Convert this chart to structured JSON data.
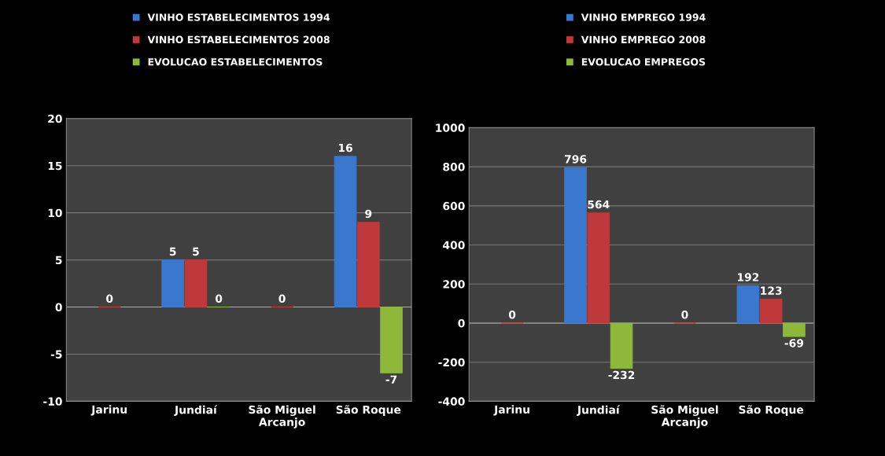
{
  "chart_data": [
    {
      "type": "bar",
      "categories": [
        "Jarinu",
        "Jundiaí",
        "São Miguel\nArcanjo",
        "São Roque"
      ],
      "series": [
        {
          "name": "VINHO ESTABELECIMENTOS 1994",
          "color": "#3a78d0",
          "values": [
            null,
            5,
            null,
            16
          ],
          "value_labels": [
            null,
            "5",
            null,
            "16"
          ]
        },
        {
          "name": "VINHO ESTABELECIMENTOS 2008",
          "color": "#c0393a",
          "values": [
            0,
            5,
            0,
            9
          ],
          "value_labels": [
            "0",
            "5",
            "0",
            "9"
          ]
        },
        {
          "name": "EVOLUCAO ESTABELECIMENTOS",
          "color": "#8db83a",
          "values": [
            null,
            0,
            null,
            -7
          ],
          "value_labels": [
            null,
            "0",
            null,
            "-7"
          ]
        }
      ],
      "ylim": [
        -10,
        20
      ],
      "yticks": [
        -10,
        -5,
        0,
        5,
        10,
        15,
        20
      ],
      "grid": "y",
      "legend": "top"
    },
    {
      "type": "bar",
      "categories": [
        "Jarinu",
        "Jundiaí",
        "São Miguel\nArcanjo",
        "São Roque"
      ],
      "series": [
        {
          "name": "VINHO EMPREGO 1994",
          "color": "#3a78d0",
          "values": [
            null,
            796,
            null,
            192
          ],
          "value_labels": [
            null,
            "796",
            null,
            "192"
          ]
        },
        {
          "name": "VINHO EMPREGO 2008",
          "color": "#c0393a",
          "values": [
            0,
            564,
            0,
            123
          ],
          "value_labels": [
            "0",
            "564",
            "0",
            "123"
          ]
        },
        {
          "name": "EVOLUCAO EMPREGOS",
          "color": "#8db83a",
          "values": [
            null,
            -232,
            null,
            -69
          ],
          "value_labels": [
            null,
            "-232",
            null,
            "-69"
          ]
        }
      ],
      "ylim": [
        -400,
        1000
      ],
      "yticks": [
        -400,
        -200,
        0,
        200,
        400,
        600,
        800,
        1000
      ],
      "grid": "y",
      "legend": "top"
    }
  ]
}
